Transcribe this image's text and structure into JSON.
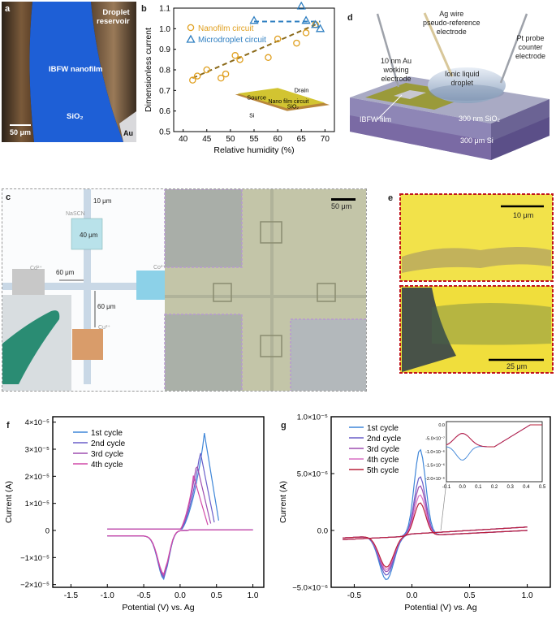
{
  "panels": {
    "a": {
      "label": "a",
      "reservoir": "Droplet\nreservoir",
      "nanofilm": "IBFW nanofilm",
      "substrate": "SiO₂",
      "metal": "Au",
      "scalebar": "50 μm"
    },
    "b": {
      "label": "b",
      "chart_data": {
        "type": "scatter",
        "xlabel": "Relative humidity (%)",
        "ylabel": "Dimensionless current",
        "xlim": [
          38,
          72
        ],
        "ylim": [
          0.5,
          1.1
        ],
        "xticks": [
          "40",
          "45",
          "50",
          "55",
          "60",
          "65",
          "70"
        ],
        "yticks": [
          "0.5",
          "0.6",
          "0.7",
          "0.8",
          "0.9",
          "1.0",
          "1.1"
        ],
        "series": [
          {
            "name": "Nanofilm circuit",
            "color": "#e0a020",
            "points": [
              [
                42,
                0.75
              ],
              [
                43,
                0.77
              ],
              [
                45,
                0.8
              ],
              [
                48,
                0.76
              ],
              [
                49,
                0.78
              ],
              [
                51,
                0.87
              ],
              [
                52,
                0.85
              ],
              [
                58,
                0.86
              ],
              [
                60,
                0.95
              ],
              [
                64,
                0.93
              ],
              [
                66,
                0.98
              ],
              [
                68,
                1.02
              ]
            ]
          },
          {
            "name": "Microdroplet circuit",
            "color": "#2f7fc1",
            "points": [
              [
                55,
                1.04
              ],
              [
                65,
                1.11
              ],
              [
                66,
                1.04
              ],
              [
                68,
                1.02
              ],
              [
                69,
                1.0
              ]
            ]
          }
        ],
        "fits": [
          {
            "color": "#8b6a1a",
            "x": [
              42,
              68
            ],
            "y": [
              0.76,
              1.02
            ]
          },
          {
            "color": "#2f7fc1",
            "x": [
              55,
              69
            ],
            "y": [
              1.035,
              1.035
            ]
          }
        ]
      },
      "inset": {
        "source": "Source",
        "drain": "Drain",
        "circuit": "Nano film circuit",
        "sio2": "SiO₂",
        "si": "Si"
      }
    },
    "c": {
      "label": "c",
      "dims": [
        "10 μm",
        "40 μm",
        "60 μm",
        "60 μm"
      ],
      "pads": [
        "NaSCN",
        "Cd²⁺",
        "Co²⁺",
        "Cu²⁺"
      ],
      "scalebar": "50 μm"
    },
    "d": {
      "label": "d",
      "ag": "Ag wire\npseudo-reference\nelectrode",
      "pt": "Pt probe\ncounter\nelectrode",
      "au": "10 nm Au\nworking\nelectrode",
      "droplet": "Ionic liquid\ndroplet",
      "film": "IBFW film",
      "sio2": "300 nm SiO₂",
      "si": "300 μm Si"
    },
    "e": {
      "label": "e",
      "scale_top": "10 μm",
      "scale_bottom": "25 μm"
    },
    "f": {
      "label": "f",
      "chart_data": {
        "type": "line",
        "xlabel": "Potential (V) vs. Ag",
        "ylabel": "Current (A)",
        "xlim": [
          -1.75,
          1.15
        ],
        "ylim": [
          -2.1e-05,
          4.2e-05
        ],
        "xticks": [
          "-1.5",
          "-1.0",
          "-0.5",
          "0.0",
          "0.5",
          "1.0"
        ],
        "yticks": [
          "4×10⁻⁵",
          "3×10⁻⁵",
          "2×10⁻⁵",
          "1×10⁻⁵",
          "0",
          "−1×10⁻⁵",
          "−2×10⁻⁵"
        ],
        "series": [
          {
            "name": "1st cycle",
            "color": "#3f86d8",
            "peak": 3.65e-05,
            "peakx": 0.33
          },
          {
            "name": "2nd cycle",
            "color": "#6a5fc9",
            "peak": 3e-05,
            "peakx": 0.27
          },
          {
            "name": "3rd cycle",
            "color": "#9e4fb0",
            "peak": 2.55e-05,
            "peakx": 0.22
          },
          {
            "name": "4th cycle",
            "color": "#d14aa8",
            "peak": 2.05e-05,
            "peakx": 0.18
          }
        ]
      }
    },
    "g": {
      "label": "g",
      "chart_data": {
        "type": "line",
        "xlabel": "Potential (V) vs. Ag",
        "ylabel": "Current (A)",
        "xlim": [
          -0.7,
          1.2
        ],
        "ylim": [
          -5e-06,
          1e-05
        ],
        "xticks": [
          "-0.5",
          "0.0",
          "0.5",
          "1.0"
        ],
        "yticks": [
          "1.0×10⁻⁵",
          "5.0×10⁻⁶",
          "0.0",
          "−5.0×10⁻⁶"
        ],
        "series": [
          {
            "name": "1st cycle",
            "color": "#3f86d8",
            "peak": 7.6e-06,
            "trough": -3.9e-06
          },
          {
            "name": "2nd cycle",
            "color": "#6a5fc9",
            "peak": 5.2e-06,
            "trough": -3.5e-06
          },
          {
            "name": "3rd cycle",
            "color": "#9e4fb0",
            "peak": 4.4e-06,
            "trough": -3.2e-06
          },
          {
            "name": "4th cycle",
            "color": "#d96fc4",
            "peak": 3.6e-06,
            "trough": -3e-06
          },
          {
            "name": "5th cycle",
            "color": "#b8203a",
            "peak": 2.9e-06,
            "trough": -2.8e-06
          }
        ],
        "inset": {
          "xticks": [
            "-0.1",
            "0.0",
            "0.1",
            "0.2",
            "0.3",
            "0.4",
            "0.5"
          ],
          "yticks": [
            "0.0",
            "-5.0×10⁻⁷",
            "-1.0×10⁻⁶",
            "-1.5×10⁻⁶",
            "-2.0×10⁻⁶"
          ]
        }
      }
    }
  }
}
